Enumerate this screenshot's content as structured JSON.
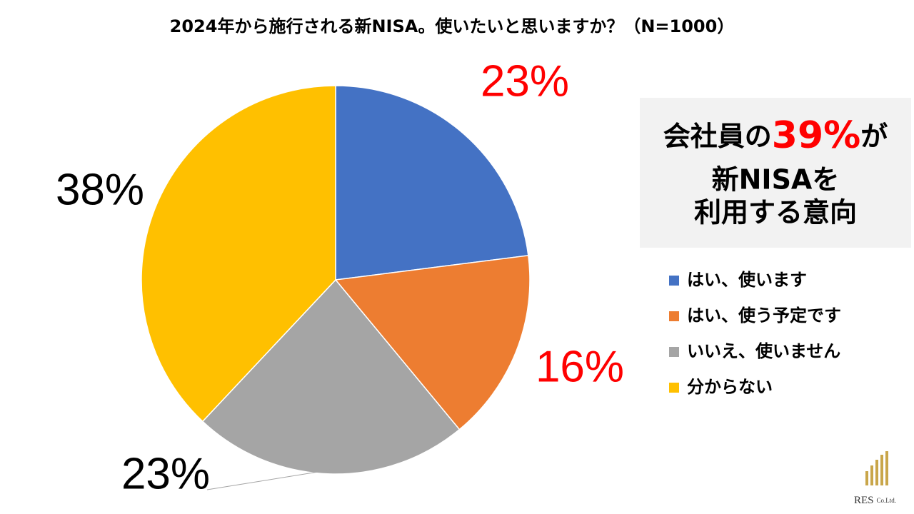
{
  "chart_data": {
    "type": "pie",
    "title": "2024年から施行される新NISA。使いたいと思いますか？（N=1000）",
    "categories": [
      "はい、使います",
      "はい、使う予定です",
      "いいえ、使いません",
      "分からない"
    ],
    "values": [
      23,
      16,
      23,
      38
    ],
    "value_labels": [
      "23%",
      "16%",
      "23%",
      "38%"
    ],
    "colors": [
      "#4472c4",
      "#ed7d31",
      "#a5a5a5",
      "#ffc000"
    ],
    "value_label_colors": [
      "#ff0000",
      "#ff0000",
      "#000000",
      "#000000"
    ],
    "legend": "right",
    "annotation": [
      "会社員の",
      "39%",
      "が",
      "新NISAを",
      "利用する意向"
    ]
  },
  "logo": {
    "name": "RES",
    "suffix": "Co.Ltd."
  }
}
